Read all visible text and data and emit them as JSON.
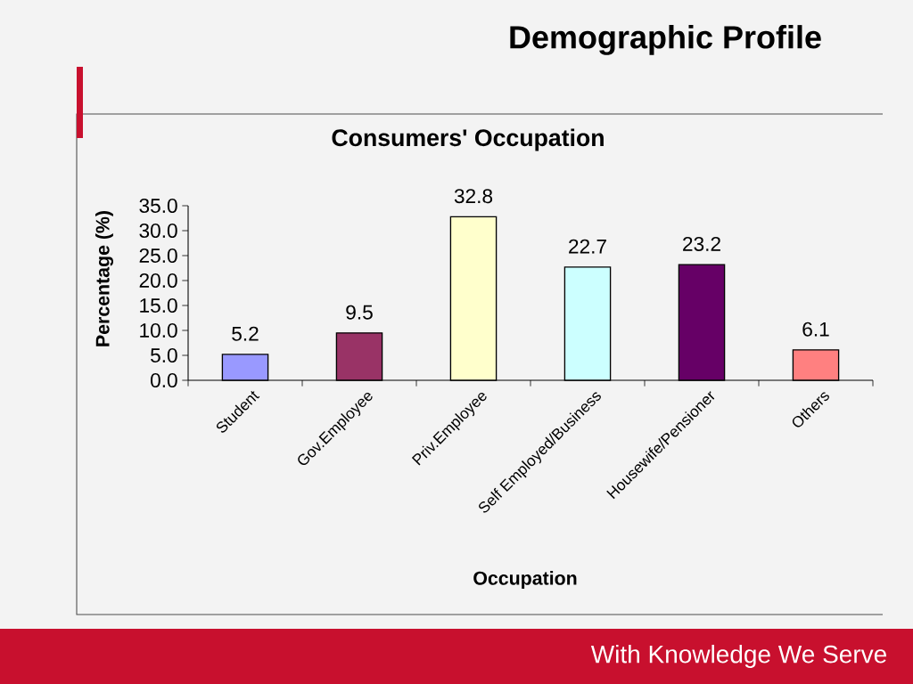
{
  "chart_data": {
    "type": "bar",
    "title": "Demographic Profile",
    "subtitle": "Consumers' Occupation",
    "xlabel": "Occupation",
    "ylabel": "Percentage (%)",
    "categories": [
      "Student",
      "Gov.Employee",
      "Priv.Employee",
      "Self Employed/Business",
      "Housewife/Pensioner",
      "Others"
    ],
    "values": [
      5.2,
      9.5,
      32.8,
      22.7,
      23.2,
      6.1
    ],
    "colors": [
      "#9999ff",
      "#993366",
      "#ffffcc",
      "#ccffff",
      "#660066",
      "#ff8080"
    ],
    "ylim": [
      0,
      35
    ],
    "yticks": [
      {
        "value": 0,
        "label": "0.0"
      },
      {
        "value": 5,
        "label": "5.0"
      },
      {
        "value": 10,
        "label": "10.0"
      },
      {
        "value": 15,
        "label": "15.0"
      },
      {
        "value": 20,
        "label": "20.0"
      },
      {
        "value": 25,
        "label": "25.0"
      },
      {
        "value": 30,
        "label": "30.0"
      },
      {
        "value": 35,
        "label": "35.0"
      }
    ],
    "data_labels": true,
    "annotations": [
      "With Knowledge We Serve"
    ]
  }
}
